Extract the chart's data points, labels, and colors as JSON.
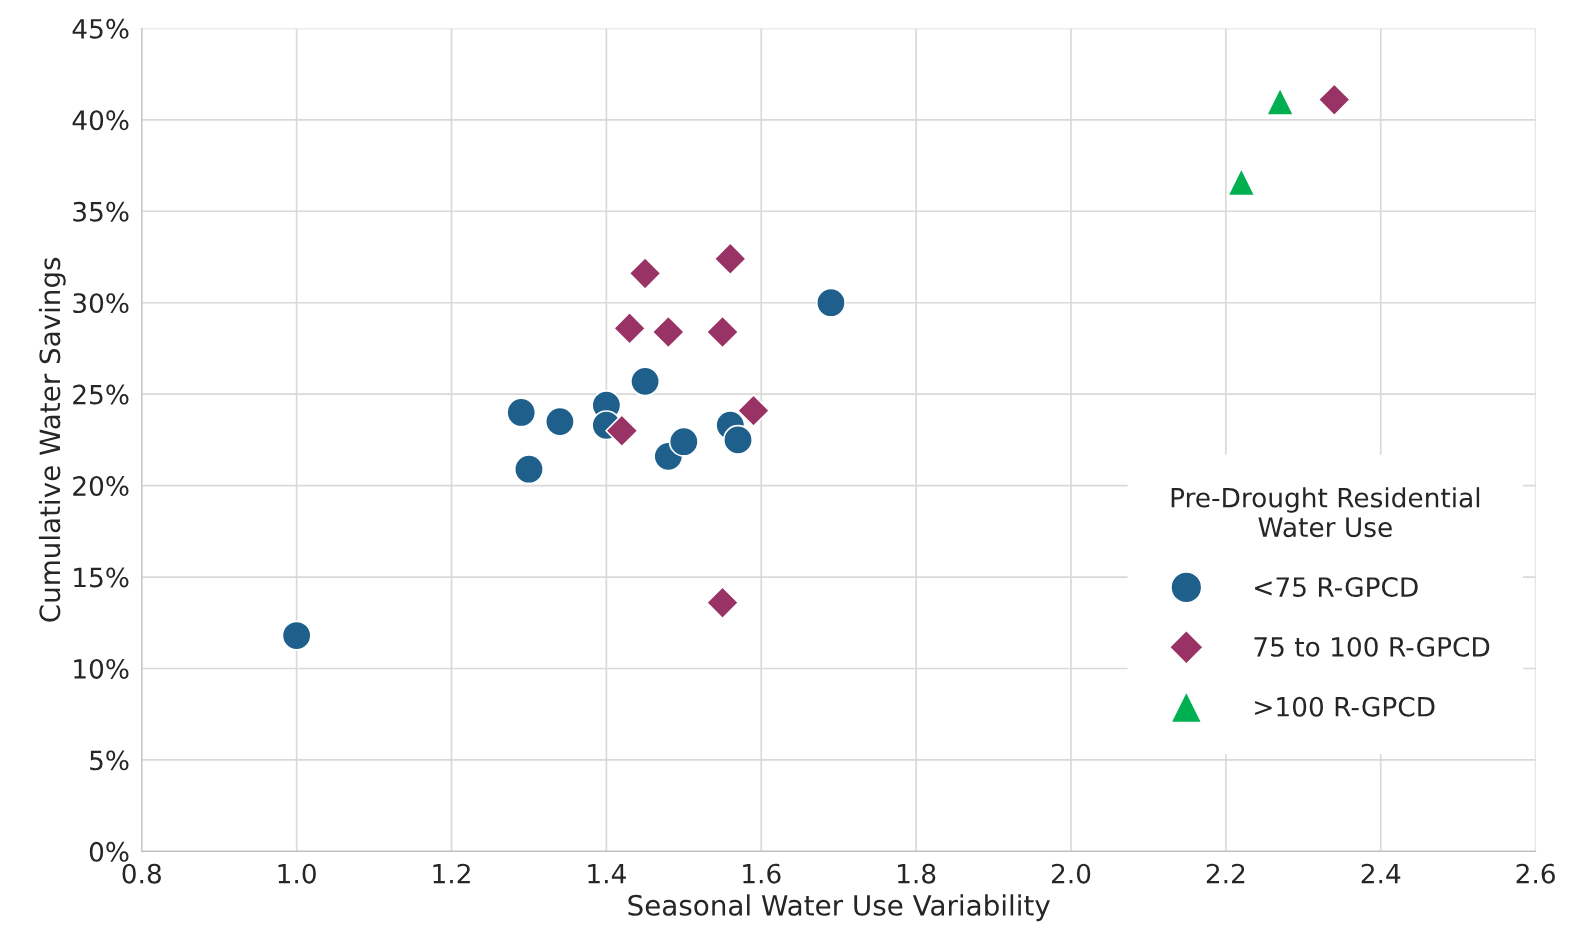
{
  "chart_data": {
    "type": "scatter",
    "xlabel": "Seasonal Water Use Variability",
    "ylabel": "Cumulative Water Savings",
    "legend_title": "Pre-Drought Residential\nWater Use",
    "xlim": [
      0.8,
      2.6
    ],
    "xticks": [
      {
        "value": 0.8,
        "label": "0.8"
      },
      {
        "value": 1.0,
        "label": "1.0"
      },
      {
        "value": 1.2,
        "label": "1.2"
      },
      {
        "value": 1.4,
        "label": "1.4"
      },
      {
        "value": 1.6,
        "label": "1.6"
      },
      {
        "value": 1.8,
        "label": "1.8"
      },
      {
        "value": 2.0,
        "label": "2.0"
      },
      {
        "value": 2.2,
        "label": "2.2"
      },
      {
        "value": 2.4,
        "label": "2.4"
      },
      {
        "value": 2.6,
        "label": "2.6"
      }
    ],
    "ylim": [
      0,
      45
    ],
    "yticks": [
      {
        "value": 0,
        "label": "0%"
      },
      {
        "value": 5,
        "label": "5%"
      },
      {
        "value": 10,
        "label": "10%"
      },
      {
        "value": 15,
        "label": "15%"
      },
      {
        "value": 20,
        "label": "20%"
      },
      {
        "value": 25,
        "label": "25%"
      },
      {
        "value": 30,
        "label": "30%"
      },
      {
        "value": 35,
        "label": "35%"
      },
      {
        "value": 40,
        "label": "40%"
      },
      {
        "value": 45,
        "label": "45%"
      }
    ],
    "grid": true,
    "legend": "right",
    "series": [
      {
        "name": "<75 R-GPCD",
        "color": "#1f5f8b",
        "marker": "circle",
        "x": [
          1.0,
          1.29,
          1.3,
          1.34,
          1.4,
          1.4,
          1.45,
          1.48,
          1.5,
          1.56,
          1.57,
          1.69
        ],
        "values": [
          11.8,
          24.0,
          20.9,
          23.5,
          24.4,
          23.3,
          25.7,
          21.6,
          22.4,
          23.3,
          22.5,
          30.0
        ]
      },
      {
        "name": "75 to 100 R-GPCD",
        "color": "#993366",
        "marker": "diamond",
        "x": [
          1.45,
          1.56,
          1.44,
          1.43,
          1.48,
          1.55,
          1.59,
          1.42,
          1.55,
          2.34
        ],
        "values": [
          31.6,
          32.4,
          null,
          28.6,
          28.4,
          28.4,
          24.1,
          23.0,
          13.6,
          41.1
        ]
      },
      {
        "name": ">100 R-GPCD",
        "color": "#00b050",
        "marker": "triangle",
        "x": [
          2.27,
          2.22
        ],
        "values": [
          41.0,
          36.6
        ]
      }
    ]
  }
}
